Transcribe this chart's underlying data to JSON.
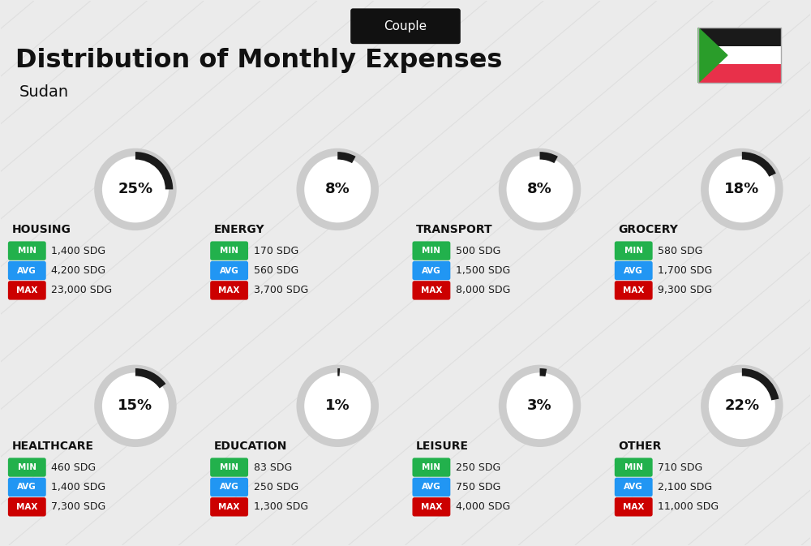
{
  "title": "Distribution of Monthly Expenses",
  "subtitle": "Sudan",
  "header_label": "Couple",
  "bg_color": "#ebebeb",
  "categories": [
    {
      "name": "HOUSING",
      "percent": 25,
      "min_val": "1,400 SDG",
      "avg_val": "4,200 SDG",
      "max_val": "23,000 SDG",
      "col": 0,
      "row": 0
    },
    {
      "name": "ENERGY",
      "percent": 8,
      "min_val": "170 SDG",
      "avg_val": "560 SDG",
      "max_val": "3,700 SDG",
      "col": 1,
      "row": 0
    },
    {
      "name": "TRANSPORT",
      "percent": 8,
      "min_val": "500 SDG",
      "avg_val": "1,500 SDG",
      "max_val": "8,000 SDG",
      "col": 2,
      "row": 0
    },
    {
      "name": "GROCERY",
      "percent": 18,
      "min_val": "580 SDG",
      "avg_val": "1,700 SDG",
      "max_val": "9,300 SDG",
      "col": 3,
      "row": 0
    },
    {
      "name": "HEALTHCARE",
      "percent": 15,
      "min_val": "460 SDG",
      "avg_val": "1,400 SDG",
      "max_val": "7,300 SDG",
      "col": 0,
      "row": 1
    },
    {
      "name": "EDUCATION",
      "percent": 1,
      "min_val": "83 SDG",
      "avg_val": "250 SDG",
      "max_val": "1,300 SDG",
      "col": 1,
      "row": 1
    },
    {
      "name": "LEISURE",
      "percent": 3,
      "min_val": "250 SDG",
      "avg_val": "750 SDG",
      "max_val": "4,000 SDG",
      "col": 2,
      "row": 1
    },
    {
      "name": "OTHER",
      "percent": 22,
      "min_val": "710 SDG",
      "avg_val": "2,100 SDG",
      "max_val": "11,000 SDG",
      "col": 3,
      "row": 1
    }
  ],
  "min_color": "#22b14c",
  "avg_color": "#2196f3",
  "max_color": "#cc0000",
  "title_color": "#111111",
  "circle_border": "#cccccc",
  "circle_fill": "#1a1a1a",
  "header_bg": "#111111",
  "header_text": "#ffffff"
}
